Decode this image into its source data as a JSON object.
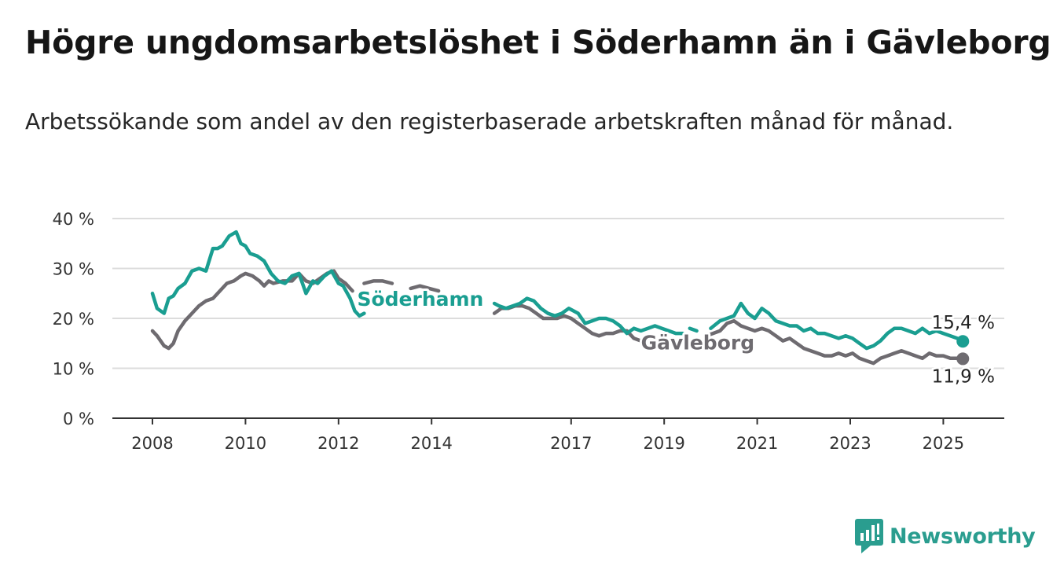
{
  "title": "Högre ungdomsarbetslöshet i Söderhamn än i Gävleborg",
  "subtitle": "Arbetssökande som andel av den registerbaserade arbetskraften månad för månad.",
  "brand": {
    "name": "Newsworthy",
    "icon": "newsworthy-logo-icon",
    "color": "#2a9d8f"
  },
  "chart_data": {
    "type": "line",
    "title": "Högre ungdomsarbetslöshet i Söderhamn än i Gävleborg",
    "subtitle": "Arbetssökande som andel av den registerbaserade arbetskraften månad för månad.",
    "xlabel": "",
    "ylabel": "",
    "xlim": [
      2007.75,
      2026.3
    ],
    "ylim": [
      0,
      40
    ],
    "y_ticks": [
      0,
      10,
      20,
      30,
      40
    ],
    "y_tick_labels": [
      "0 %",
      "10 %",
      "20 %",
      "30 %",
      "40 %"
    ],
    "x_ticks": [
      2008,
      2010,
      2012,
      2014,
      2017,
      2019,
      2021,
      2023,
      2025
    ],
    "x_tick_labels": [
      "2008",
      "2010",
      "2012",
      "2014",
      "2017",
      "2019",
      "2021",
      "2023",
      "2025"
    ],
    "grid": "horizontal",
    "legend": "none",
    "series": [
      {
        "name": "Söderhamn",
        "color": "#1a9e91",
        "end_label": "15,4 %",
        "x": [
          2008.0,
          2008.1,
          2008.25,
          2008.35,
          2008.45,
          2008.55,
          2008.7,
          2008.85,
          2009.0,
          2009.15,
          2009.3,
          2009.4,
          2009.5,
          2009.65,
          2009.8,
          2009.9,
          2010.0,
          2010.1,
          2010.25,
          2010.4,
          2010.55,
          2010.7,
          2010.85,
          2011.0,
          2011.15,
          2011.3,
          2011.45,
          2011.55,
          2011.7,
          2011.85,
          2012.0,
          2012.1,
          2012.25,
          2012.35,
          2012.45,
          2012.55,
          null,
          2015.35,
          2015.45,
          2015.6,
          2015.75,
          2015.9,
          2016.05,
          2016.2,
          2016.35,
          2016.5,
          2016.65,
          2016.8,
          2016.95,
          2017.15,
          2017.3,
          2017.45,
          2017.6,
          2017.75,
          2017.9,
          2018.05,
          2018.2,
          2018.35,
          2018.5,
          2018.65,
          2018.8,
          2018.95,
          2019.1,
          2019.25,
          2019.4,
          null,
          2019.55,
          2019.7,
          null,
          2020.0,
          2020.2,
          2020.35,
          2020.5,
          2020.65,
          2020.8,
          2020.95,
          2021.1,
          2021.25,
          2021.4,
          2021.55,
          2021.7,
          2021.85,
          2022.0,
          2022.15,
          2022.3,
          2022.45,
          2022.6,
          2022.75,
          2022.9,
          2023.05,
          2023.2,
          2023.35,
          2023.5,
          2023.65,
          2023.8,
          2023.95,
          2024.1,
          2024.25,
          2024.4,
          2024.55,
          2024.7,
          2024.85,
          2025.0,
          2025.15,
          2025.3,
          2025.42
        ],
        "values": [
          25.0,
          22.0,
          21.0,
          24.0,
          24.5,
          26.0,
          27.0,
          29.5,
          30.0,
          29.5,
          34.0,
          34.0,
          34.5,
          36.5,
          37.3,
          35.0,
          34.5,
          33.0,
          32.5,
          31.5,
          29.0,
          27.5,
          27.0,
          28.5,
          29.0,
          25.0,
          27.5,
          27.0,
          28.5,
          29.5,
          27.0,
          26.5,
          24.0,
          21.5,
          20.5,
          21.0,
          null,
          23.0,
          22.5,
          22.0,
          22.5,
          23.0,
          24.0,
          23.5,
          22.0,
          21.0,
          20.5,
          21.0,
          22.0,
          21.0,
          19.0,
          19.5,
          20.0,
          20.0,
          19.5,
          18.5,
          17.0,
          18.0,
          17.5,
          18.0,
          18.5,
          18.0,
          17.5,
          17.0,
          17.0,
          null,
          18.0,
          17.5,
          null,
          18.0,
          19.5,
          20.0,
          20.5,
          23.0,
          21.0,
          20.0,
          22.0,
          21.0,
          19.5,
          19.0,
          18.5,
          18.5,
          17.5,
          18.0,
          17.0,
          17.0,
          16.5,
          16.0,
          16.5,
          16.0,
          15.0,
          14.0,
          14.5,
          15.5,
          17.0,
          18.0,
          18.0,
          17.5,
          17.0,
          18.0,
          17.0,
          17.5,
          17.0,
          16.5,
          16.0,
          15.4
        ]
      },
      {
        "name": "Gävleborg",
        "color": "#6e6b70",
        "end_label": "11,9 %",
        "x": [
          2008.0,
          2008.1,
          2008.25,
          2008.35,
          2008.45,
          2008.55,
          2008.7,
          2008.85,
          2009.0,
          2009.15,
          2009.3,
          2009.45,
          2009.6,
          2009.75,
          2009.9,
          2010.0,
          2010.15,
          2010.3,
          2010.4,
          2010.5,
          2010.6,
          2010.8,
          2011.0,
          2011.15,
          2011.3,
          2011.45,
          2011.6,
          2011.75,
          2011.9,
          2012.0,
          2012.15,
          2012.3,
          null,
          2012.55,
          2012.75,
          2012.95,
          2013.15,
          null,
          2013.55,
          2013.75,
          2013.95,
          2014.15,
          null,
          2015.35,
          2015.5,
          2015.65,
          2015.8,
          2015.95,
          2016.1,
          2016.25,
          2016.4,
          2016.55,
          2016.7,
          2016.85,
          2017.0,
          2017.15,
          2017.3,
          2017.45,
          2017.6,
          2017.75,
          2017.9,
          2018.05,
          2018.2,
          2018.35,
          2018.5,
          null,
          2019.9,
          2020.05,
          2020.2,
          2020.35,
          2020.5,
          2020.65,
          2020.8,
          2020.95,
          2021.1,
          2021.25,
          2021.4,
          2021.55,
          2021.7,
          2021.85,
          2022.0,
          2022.15,
          2022.3,
          2022.45,
          2022.6,
          2022.75,
          2022.9,
          2023.05,
          2023.2,
          2023.35,
          2023.5,
          2023.65,
          2023.8,
          2023.95,
          2024.1,
          2024.25,
          2024.4,
          2024.55,
          2024.7,
          2024.85,
          2025.0,
          2025.15,
          2025.3,
          2025.42
        ],
        "values": [
          17.5,
          16.5,
          14.5,
          14.0,
          15.0,
          17.5,
          19.5,
          21.0,
          22.5,
          23.5,
          24.0,
          25.5,
          27.0,
          27.5,
          28.5,
          29.0,
          28.5,
          27.5,
          26.5,
          27.5,
          27.0,
          27.5,
          27.5,
          29.0,
          27.5,
          27.0,
          28.0,
          29.0,
          29.5,
          28.0,
          27.0,
          25.5,
          null,
          27.0,
          27.5,
          27.5,
          27.0,
          null,
          26.0,
          26.5,
          26.0,
          25.5,
          null,
          21.0,
          22.0,
          22.0,
          22.5,
          22.5,
          22.0,
          21.0,
          20.0,
          20.0,
          20.0,
          20.5,
          20.0,
          19.0,
          18.0,
          17.0,
          16.5,
          17.0,
          17.0,
          17.5,
          17.5,
          16.0,
          15.5,
          null,
          16.5,
          17.0,
          17.5,
          19.0,
          19.5,
          18.5,
          18.0,
          17.5,
          18.0,
          17.5,
          16.5,
          15.5,
          16.0,
          15.0,
          14.0,
          13.5,
          13.0,
          12.5,
          12.5,
          13.0,
          12.5,
          13.0,
          12.0,
          11.5,
          11.0,
          12.0,
          12.5,
          13.0,
          13.5,
          13.0,
          12.5,
          12.0,
          13.0,
          12.5,
          12.5,
          12.0,
          12.0,
          11.9
        ]
      }
    ]
  }
}
